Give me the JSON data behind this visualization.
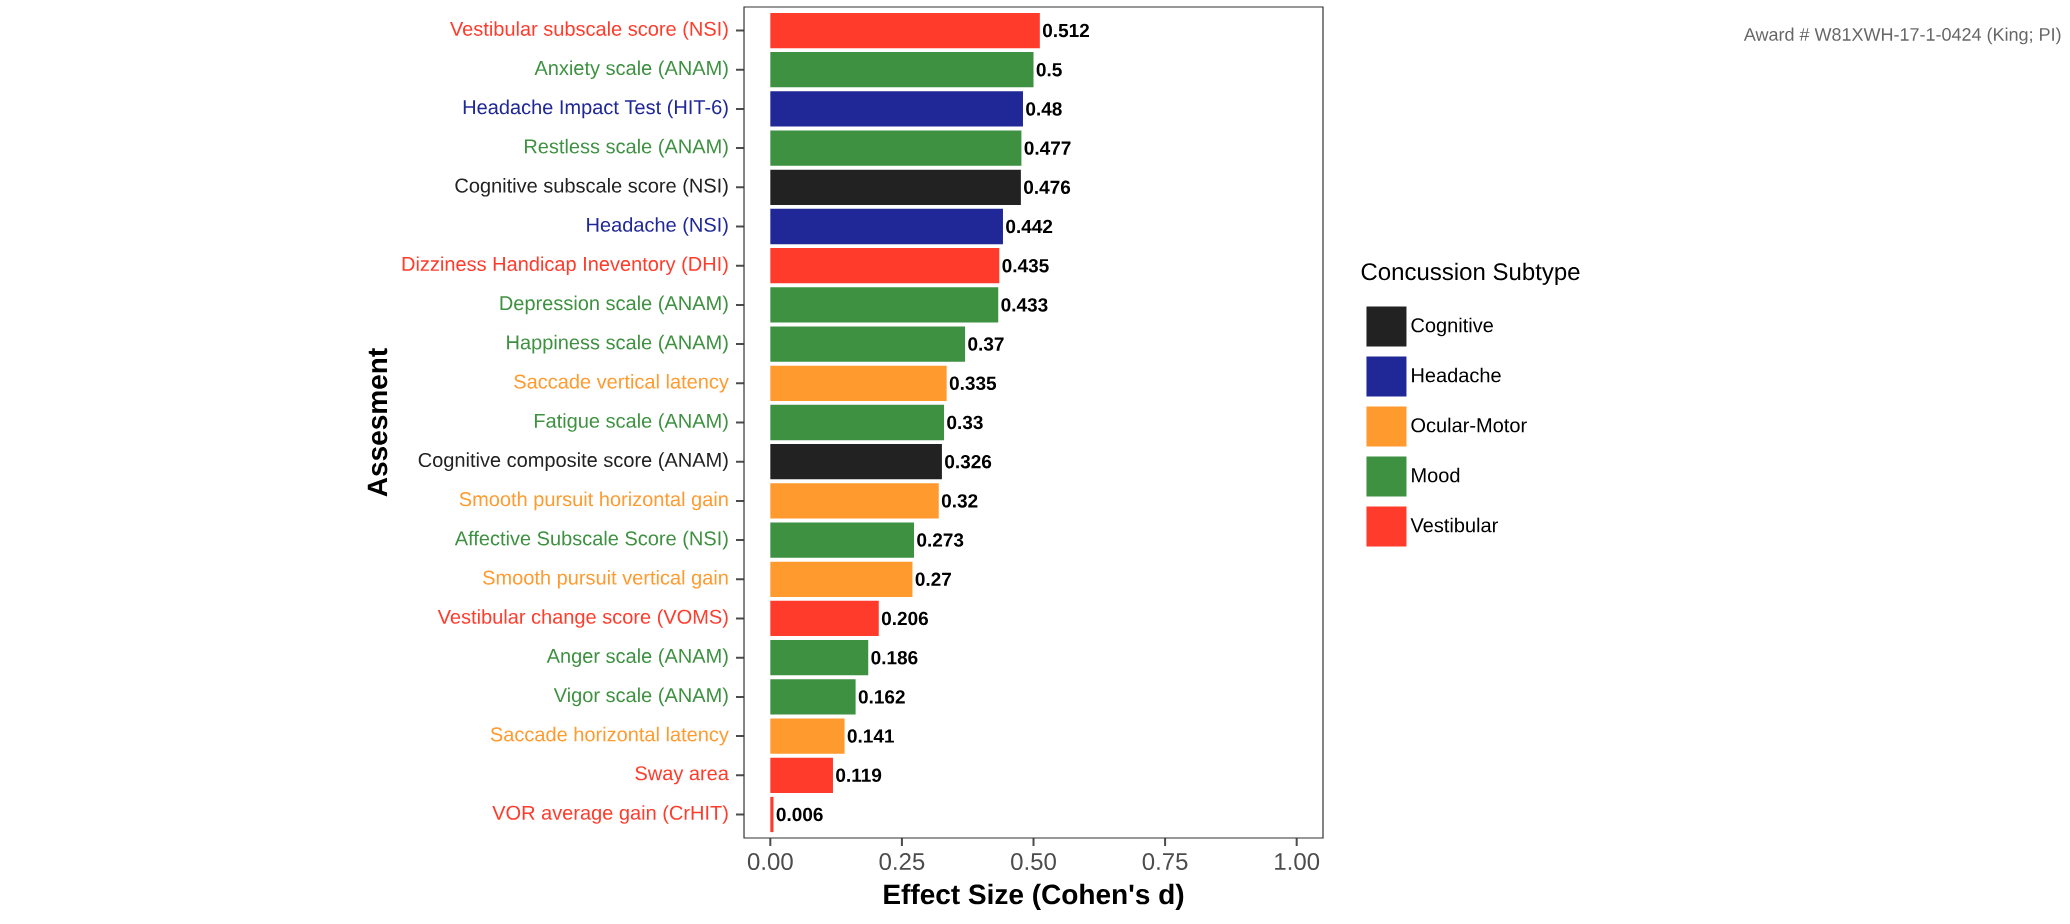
{
  "chart_data": {
    "type": "bar",
    "orientation": "horizontal",
    "categories": [
      "Vestibular subscale score (NSI)",
      "Anxiety scale (ANAM)",
      "Headache Impact Test (HIT-6)",
      "Restless scale (ANAM)",
      "Cognitive subscale score (NSI)",
      "Headache (NSI)",
      "Dizziness Handicap Ineventory (DHI)",
      "Depression scale (ANAM)",
      "Happiness scale (ANAM)",
      "Saccade vertical latency",
      "Fatigue scale (ANAM)",
      "Cognitive composite score (ANAM)",
      "Smooth pursuit horizontal gain",
      "Affective Subscale Score (NSI)",
      "Smooth pursuit vertical gain",
      "Vestibular change score (VOMS)",
      "Anger scale (ANAM)",
      "Vigor scale (ANAM)",
      "Saccade horizontal latency",
      "Sway area",
      "VOR average gain (CrHIT)"
    ],
    "series": [
      {
        "name": "Cognitive",
        "color": "#222222",
        "values": [
          null,
          null,
          null,
          null,
          0.476,
          null,
          null,
          null,
          null,
          null,
          null,
          0.326,
          null,
          null,
          null,
          null,
          null,
          null,
          null,
          null,
          null
        ]
      },
      {
        "name": "Headache",
        "color": "#1f2896",
        "values": [
          null,
          null,
          0.48,
          null,
          null,
          0.442,
          null,
          null,
          null,
          null,
          null,
          null,
          null,
          null,
          null,
          null,
          null,
          null,
          null,
          null,
          null
        ]
      },
      {
        "name": "Ocular-Motor",
        "color": "#ff9a2e",
        "values": [
          null,
          null,
          null,
          null,
          null,
          null,
          null,
          null,
          null,
          0.335,
          null,
          null,
          0.32,
          null,
          0.27,
          null,
          null,
          null,
          0.141,
          null,
          null
        ]
      },
      {
        "name": "Mood",
        "color": "#3d9140",
        "values": [
          null,
          0.5,
          null,
          0.477,
          null,
          null,
          null,
          0.433,
          0.37,
          null,
          0.33,
          null,
          null,
          0.273,
          null,
          null,
          0.186,
          0.162,
          null,
          null,
          null
        ]
      },
      {
        "name": "Vestibular",
        "color": "#ff3b2b",
        "values": [
          0.512,
          null,
          null,
          null,
          null,
          null,
          0.435,
          null,
          null,
          null,
          null,
          null,
          null,
          null,
          null,
          0.206,
          null,
          null,
          null,
          0.119,
          0.006
        ]
      }
    ],
    "xlim": [
      -0.05,
      1.05
    ],
    "xticks": [
      {
        "value": 0,
        "label": "0.00"
      },
      {
        "value": 0.25,
        "label": "0.25"
      },
      {
        "value": 0.5,
        "label": "0.50"
      },
      {
        "value": 0.75,
        "label": "0.75"
      },
      {
        "value": 1,
        "label": "1.00"
      }
    ],
    "xlabel": "Effect Size (Cohen's d)",
    "ylabel": "Assesment",
    "legend_title": "Concussion Subtype",
    "legend": "right",
    "data_labels": true,
    "annotations": [
      "Award # W81XWH-17-1-0424 (King; PI)"
    ]
  }
}
